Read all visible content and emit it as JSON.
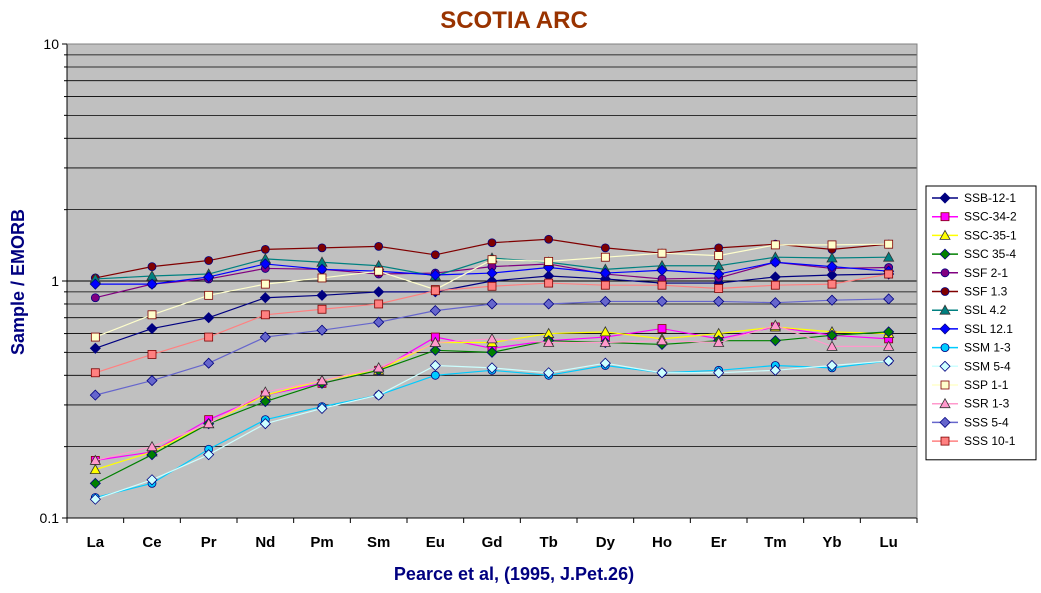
{
  "chart_data": {
    "type": "line",
    "title": "SCOTIA ARC",
    "xlabel": "Pearce et al, (1995, J.Pet.26)",
    "ylabel": "Sample / EMORB",
    "yscale": "log",
    "ylim": [
      0.1,
      10
    ],
    "ytick_labels": [
      "0.1",
      "1",
      "10"
    ],
    "grid": true,
    "legend_position": "right",
    "plot_background": "#c0c0c0",
    "categories": [
      "La",
      "Ce",
      "Pr",
      "Nd",
      "Pm",
      "Sm",
      "Eu",
      "Gd",
      "Tb",
      "Dy",
      "Ho",
      "Er",
      "Tm",
      "Yb",
      "Lu"
    ],
    "series": [
      {
        "name": "SSB-12-1",
        "color": "#000080",
        "marker": "diamond",
        "values": [
          0.52,
          0.63,
          0.7,
          0.85,
          0.87,
          0.9,
          0.9,
          1.0,
          1.05,
          1.02,
          0.98,
          0.98,
          1.04,
          1.06,
          1.07
        ]
      },
      {
        "name": "SSC-34-2",
        "color": "#ff00ff",
        "marker": "square",
        "values": [
          0.175,
          0.19,
          0.26,
          0.33,
          0.37,
          0.42,
          0.58,
          0.52,
          0.56,
          0.58,
          0.63,
          0.57,
          0.64,
          0.59,
          0.57
        ]
      },
      {
        "name": "SSC-35-1",
        "color": "#ffff00",
        "marker": "triangle",
        "values": [
          0.16,
          0.19,
          0.25,
          0.33,
          0.38,
          0.42,
          0.55,
          0.55,
          0.6,
          0.61,
          0.57,
          0.6,
          0.64,
          0.61,
          0.6
        ]
      },
      {
        "name": "SSC 35-4",
        "color": "#008000",
        "marker": "diamond",
        "values": [
          0.14,
          0.185,
          0.25,
          0.31,
          0.37,
          0.42,
          0.51,
          0.5,
          0.56,
          0.55,
          0.54,
          0.56,
          0.56,
          0.59,
          0.61
        ]
      },
      {
        "name": "SSF 2-1",
        "color": "#800080",
        "marker": "circle",
        "values": [
          0.85,
          0.97,
          1.02,
          1.13,
          1.12,
          1.07,
          1.08,
          1.15,
          1.18,
          1.07,
          1.02,
          1.03,
          1.2,
          1.13,
          1.14
        ]
      },
      {
        "name": "SSF 1.3",
        "color": "#800000",
        "marker": "circle",
        "values": [
          1.03,
          1.15,
          1.22,
          1.36,
          1.38,
          1.4,
          1.29,
          1.45,
          1.5,
          1.38,
          1.31,
          1.38,
          1.43,
          1.36,
          1.43
        ]
      },
      {
        "name": "SSL 4.2",
        "color": "#008080",
        "marker": "triangle",
        "values": [
          1.02,
          1.05,
          1.07,
          1.24,
          1.2,
          1.16,
          1.05,
          1.25,
          1.2,
          1.12,
          1.16,
          1.16,
          1.26,
          1.25,
          1.26
        ]
      },
      {
        "name": "SSL 12.1",
        "color": "#0000ff",
        "marker": "diamond",
        "values": [
          0.97,
          0.97,
          1.04,
          1.18,
          1.12,
          1.1,
          1.06,
          1.08,
          1.14,
          1.08,
          1.11,
          1.07,
          1.2,
          1.15,
          1.1
        ]
      },
      {
        "name": "SSM 1-3",
        "color": "#00ccff",
        "marker": "circle",
        "values": [
          0.122,
          0.14,
          0.195,
          0.26,
          0.295,
          0.33,
          0.4,
          0.42,
          0.4,
          0.44,
          0.41,
          0.42,
          0.44,
          0.43,
          0.46
        ]
      },
      {
        "name": "SSM 5-4",
        "color": "#ccffff",
        "marker": "diamond",
        "values": [
          0.12,
          0.145,
          0.185,
          0.25,
          0.29,
          0.33,
          0.44,
          0.43,
          0.41,
          0.45,
          0.41,
          0.41,
          0.42,
          0.44,
          0.46
        ]
      },
      {
        "name": "SSP 1-1",
        "color": "#ffffcc",
        "marker": "square",
        "values": [
          0.58,
          0.72,
          0.87,
          0.97,
          1.03,
          1.1,
          0.92,
          1.23,
          1.21,
          1.26,
          1.31,
          1.28,
          1.42,
          1.42,
          1.43
        ]
      },
      {
        "name": "SSR 1-3",
        "color": "#ff99cc",
        "marker": "triangle",
        "values": [
          0.175,
          0.2,
          0.25,
          0.34,
          0.38,
          0.43,
          0.55,
          0.57,
          0.55,
          0.55,
          0.56,
          0.55,
          0.65,
          0.53,
          0.53
        ]
      },
      {
        "name": "SSS 5-4",
        "color": "#6666cc",
        "marker": "diamond",
        "values": [
          0.33,
          0.38,
          0.45,
          0.58,
          0.62,
          0.67,
          0.75,
          0.8,
          0.8,
          0.82,
          0.82,
          0.82,
          0.81,
          0.83,
          0.84
        ]
      },
      {
        "name": "SSS 10-1",
        "color": "#ff8080",
        "marker": "square",
        "values": [
          0.41,
          0.49,
          0.58,
          0.72,
          0.76,
          0.8,
          0.91,
          0.95,
          0.98,
          0.96,
          0.96,
          0.93,
          0.96,
          0.97,
          1.07
        ]
      }
    ]
  }
}
